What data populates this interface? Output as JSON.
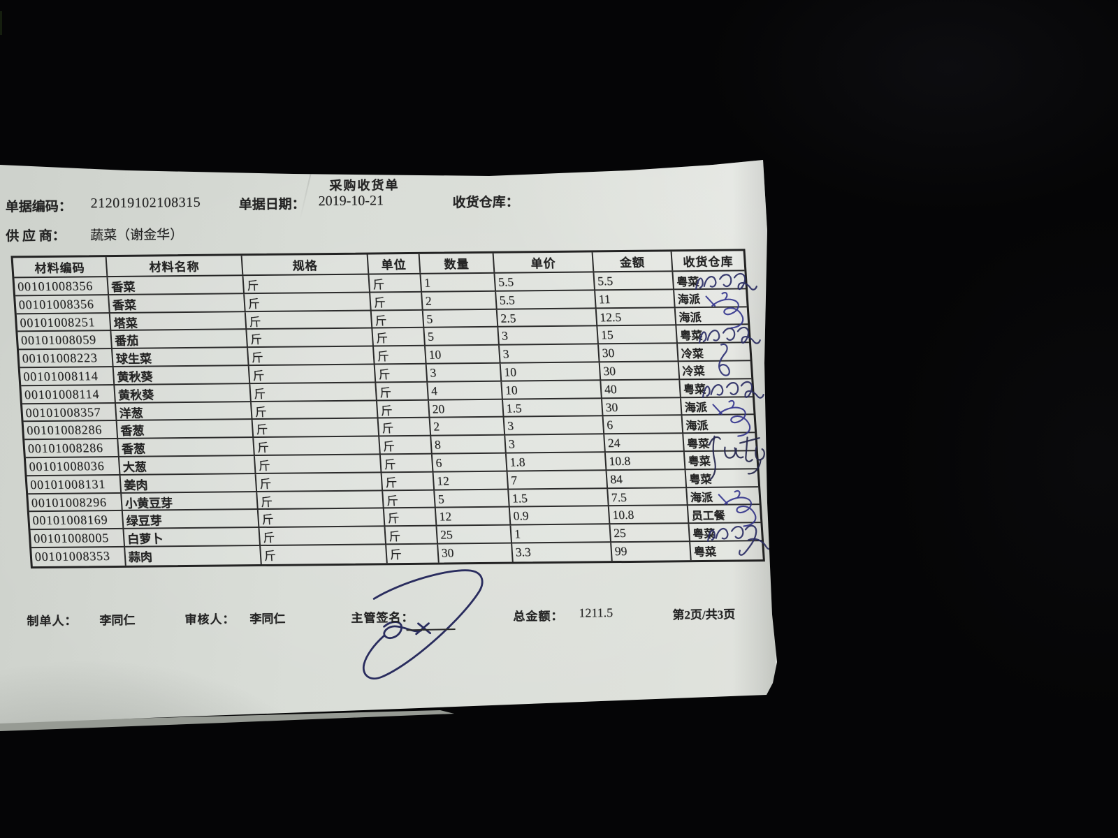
{
  "photo": {
    "background_color": "#050506",
    "paper_color": "#d8dcd6",
    "print_color": "#242424",
    "ink_color": "#2b2e66"
  },
  "document": {
    "title": "采购收货单",
    "fields": {
      "doc_code_label": "单据编码：",
      "doc_code": "212019102108315",
      "doc_date_label": "单据日期：",
      "doc_date": "2019-10-21",
      "warehouse_label": "收货仓库：",
      "warehouse_value": "",
      "supplier_label": "供 应 商：",
      "supplier": "蔬菜（谢金华）"
    },
    "table": {
      "columns": [
        "材料编码",
        "材料名称",
        "规格",
        "单位",
        "数量",
        "单价",
        "金额",
        "收货仓库"
      ],
      "rows": [
        {
          "code": "00101008356",
          "name": "香菜",
          "spec": "斤",
          "unit": "斤",
          "qty": "1",
          "price": "5.5",
          "amount": "5.5",
          "warehouse": "粤菜",
          "sig": "wavy"
        },
        {
          "code": "00101008356",
          "name": "香菜",
          "spec": "斤",
          "unit": "斤",
          "qty": "2",
          "price": "5.5",
          "amount": "11",
          "warehouse": "海派",
          "sig": "dragon"
        },
        {
          "code": "00101008251",
          "name": "塔菜",
          "spec": "斤",
          "unit": "斤",
          "qty": "5",
          "price": "2.5",
          "amount": "12.5",
          "warehouse": "海派",
          "sig": null
        },
        {
          "code": "00101008059",
          "name": "番茄",
          "spec": "斤",
          "unit": "斤",
          "qty": "5",
          "price": "3",
          "amount": "15",
          "warehouse": "粤菜",
          "sig": "wavy"
        },
        {
          "code": "00101008223",
          "name": "球生菜",
          "spec": "斤",
          "unit": "斤",
          "qty": "10",
          "price": "3",
          "amount": "30",
          "warehouse": "冷菜",
          "sig": "loop"
        },
        {
          "code": "00101008114",
          "name": "黄秋葵",
          "spec": "斤",
          "unit": "斤",
          "qty": "3",
          "price": "10",
          "amount": "30",
          "warehouse": "冷菜",
          "sig": null
        },
        {
          "code": "00101008114",
          "name": "黄秋葵",
          "spec": "斤",
          "unit": "斤",
          "qty": "4",
          "price": "10",
          "amount": "40",
          "warehouse": "粤菜",
          "sig": "wavy"
        },
        {
          "code": "00101008357",
          "name": "洋葱",
          "spec": "斤",
          "unit": "斤",
          "qty": "20",
          "price": "1.5",
          "amount": "30",
          "warehouse": "海派",
          "sig": "dragon"
        },
        {
          "code": "00101008286",
          "name": "香葱",
          "spec": "斤",
          "unit": "斤",
          "qty": "2",
          "price": "3",
          "amount": "6",
          "warehouse": "海派",
          "sig": null
        },
        {
          "code": "00101008286",
          "name": "香葱",
          "spec": "斤",
          "unit": "斤",
          "qty": "8",
          "price": "3",
          "amount": "24",
          "warehouse": "粤菜",
          "sig": "kwty"
        },
        {
          "code": "00101008036",
          "name": "大葱",
          "spec": "斤",
          "unit": "斤",
          "qty": "6",
          "price": "1.8",
          "amount": "10.8",
          "warehouse": "粤菜",
          "sig": null
        },
        {
          "code": "00101008131",
          "name": "姜肉",
          "spec": "斤",
          "unit": "斤",
          "qty": "12",
          "price": "7",
          "amount": "84",
          "warehouse": "粤菜",
          "sig": null
        },
        {
          "code": "00101008296",
          "name": "小黄豆芽",
          "spec": "斤",
          "unit": "斤",
          "qty": "5",
          "price": "1.5",
          "amount": "7.5",
          "warehouse": "海派",
          "sig": "dragon"
        },
        {
          "code": "00101008169",
          "name": "绿豆芽",
          "spec": "斤",
          "unit": "斤",
          "qty": "12",
          "price": "0.9",
          "amount": "10.8",
          "warehouse": "员工餐",
          "sig": null
        },
        {
          "code": "00101008005",
          "name": "白萝卜",
          "spec": "斤",
          "unit": "斤",
          "qty": "25",
          "price": "1",
          "amount": "25",
          "warehouse": "粤菜",
          "sig": "wavyTall"
        },
        {
          "code": "00101008353",
          "name": "蒜肉",
          "spec": "斤",
          "unit": "斤",
          "qty": "30",
          "price": "3.3",
          "amount": "99",
          "warehouse": "粤菜",
          "sig": null
        }
      ]
    },
    "footer": {
      "maker_label": "制单人：",
      "maker": "李同仁",
      "auditor_label": "审核人：",
      "auditor": "李同仁",
      "sign_label": "主管签名：",
      "supervisor_signed": true,
      "total_label": "总金额：",
      "total": "1211.5",
      "page_info": "第2页/共3页"
    }
  }
}
